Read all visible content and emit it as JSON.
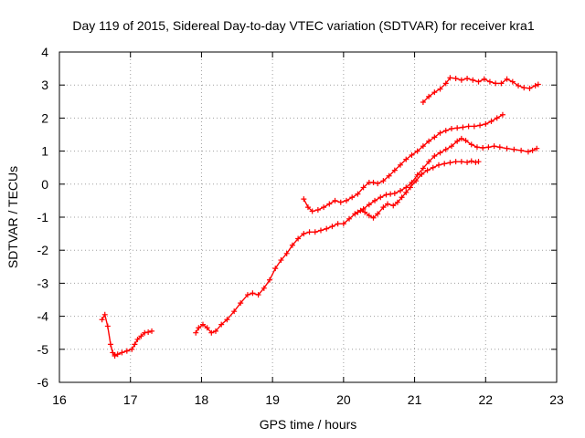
{
  "chart_data": {
    "type": "scatter",
    "title": "Day 119 of 2015, Sidereal Day-to-day VTEC variation (SDTVAR) for receiver kra1",
    "xlabel": "GPS time / hours",
    "ylabel": "SDTVAR / TECUs",
    "xlim": [
      16,
      23
    ],
    "ylim": [
      -6,
      4
    ],
    "xticks": [
      16,
      17,
      18,
      19,
      20,
      21,
      22,
      23
    ],
    "yticks": [
      -6,
      -5,
      -4,
      -3,
      -2,
      -1,
      0,
      1,
      2,
      3,
      4
    ],
    "grid": true,
    "marker": "+",
    "color": "#ff0000",
    "series": [
      {
        "points": [
          [
            16.6,
            -4.1
          ],
          [
            16.64,
            -3.95
          ],
          [
            16.68,
            -4.3
          ],
          [
            16.72,
            -4.85
          ],
          [
            16.75,
            -5.1
          ],
          [
            16.78,
            -5.2
          ],
          [
            16.82,
            -5.15
          ],
          [
            16.88,
            -5.1
          ],
          [
            16.95,
            -5.05
          ],
          [
            17.02,
            -5.0
          ],
          [
            17.06,
            -4.85
          ],
          [
            17.1,
            -4.7
          ],
          [
            17.15,
            -4.6
          ],
          [
            17.2,
            -4.5
          ],
          [
            17.25,
            -4.48
          ],
          [
            17.3,
            -4.45
          ]
        ]
      },
      {
        "points": [
          [
            17.92,
            -4.5
          ],
          [
            17.96,
            -4.35
          ],
          [
            18.02,
            -4.25
          ],
          [
            18.08,
            -4.35
          ],
          [
            18.14,
            -4.5
          ],
          [
            18.2,
            -4.45
          ],
          [
            18.28,
            -4.25
          ],
          [
            18.36,
            -4.1
          ],
          [
            18.46,
            -3.85
          ],
          [
            18.55,
            -3.6
          ],
          [
            18.65,
            -3.35
          ],
          [
            18.72,
            -3.3
          ],
          [
            18.8,
            -3.35
          ],
          [
            18.88,
            -3.15
          ],
          [
            18.96,
            -2.9
          ],
          [
            19.04,
            -2.55
          ],
          [
            19.12,
            -2.3
          ],
          [
            19.2,
            -2.1
          ],
          [
            19.28,
            -1.85
          ],
          [
            19.36,
            -1.65
          ],
          [
            19.44,
            -1.5
          ],
          [
            19.52,
            -1.45
          ],
          [
            19.6,
            -1.45
          ],
          [
            19.68,
            -1.4
          ],
          [
            19.76,
            -1.35
          ],
          [
            19.84,
            -1.28
          ],
          [
            19.92,
            -1.2
          ],
          [
            20.0,
            -1.2
          ],
          [
            20.08,
            -1.05
          ],
          [
            20.16,
            -0.9
          ],
          [
            20.24,
            -0.8
          ],
          [
            20.3,
            -0.85
          ],
          [
            20.36,
            -0.95
          ],
          [
            20.42,
            -1.02
          ],
          [
            20.48,
            -0.9
          ],
          [
            20.56,
            -0.7
          ],
          [
            20.62,
            -0.6
          ],
          [
            20.7,
            -0.65
          ],
          [
            20.76,
            -0.55
          ],
          [
            20.82,
            -0.4
          ],
          [
            20.88,
            -0.25
          ],
          [
            20.94,
            -0.1
          ],
          [
            21.02,
            0.1
          ],
          [
            21.1,
            0.3
          ],
          [
            21.18,
            0.42
          ],
          [
            21.26,
            0.5
          ],
          [
            21.34,
            0.58
          ],
          [
            21.42,
            0.62
          ],
          [
            21.5,
            0.65
          ],
          [
            21.58,
            0.68
          ],
          [
            21.66,
            0.68
          ],
          [
            21.74,
            0.66
          ],
          [
            21.8,
            0.7
          ],
          [
            21.86,
            0.66
          ],
          [
            21.9,
            0.68
          ]
        ]
      },
      {
        "points": [
          [
            19.44,
            -0.45
          ],
          [
            19.5,
            -0.7
          ],
          [
            19.56,
            -0.82
          ],
          [
            19.64,
            -0.78
          ],
          [
            19.72,
            -0.7
          ],
          [
            19.8,
            -0.6
          ],
          [
            19.88,
            -0.5
          ],
          [
            19.96,
            -0.55
          ],
          [
            20.04,
            -0.5
          ],
          [
            20.12,
            -0.4
          ],
          [
            20.2,
            -0.3
          ],
          [
            20.28,
            -0.1
          ],
          [
            20.36,
            0.05
          ],
          [
            20.42,
            0.05
          ],
          [
            20.48,
            0.02
          ],
          [
            20.56,
            0.1
          ],
          [
            20.64,
            0.25
          ],
          [
            20.72,
            0.42
          ],
          [
            20.8,
            0.58
          ],
          [
            20.88,
            0.75
          ],
          [
            20.96,
            0.88
          ],
          [
            21.04,
            1.0
          ],
          [
            21.12,
            1.15
          ],
          [
            21.2,
            1.3
          ],
          [
            21.28,
            1.42
          ],
          [
            21.36,
            1.55
          ],
          [
            21.44,
            1.62
          ],
          [
            21.52,
            1.68
          ],
          [
            21.6,
            1.7
          ],
          [
            21.68,
            1.72
          ],
          [
            21.76,
            1.75
          ],
          [
            21.84,
            1.75
          ],
          [
            21.92,
            1.78
          ],
          [
            22.0,
            1.82
          ],
          [
            22.08,
            1.9
          ],
          [
            22.16,
            2.0
          ],
          [
            22.24,
            2.1
          ]
        ]
      },
      {
        "points": [
          [
            20.2,
            -0.85
          ],
          [
            20.28,
            -0.75
          ],
          [
            20.36,
            -0.62
          ],
          [
            20.44,
            -0.5
          ],
          [
            20.52,
            -0.4
          ],
          [
            20.6,
            -0.32
          ],
          [
            20.66,
            -0.3
          ],
          [
            20.72,
            -0.28
          ],
          [
            20.8,
            -0.2
          ],
          [
            20.88,
            -0.1
          ],
          [
            20.96,
            0.05
          ],
          [
            21.04,
            0.28
          ],
          [
            21.12,
            0.48
          ],
          [
            21.2,
            0.68
          ],
          [
            21.28,
            0.85
          ],
          [
            21.36,
            0.95
          ],
          [
            21.44,
            1.05
          ],
          [
            21.52,
            1.15
          ],
          [
            21.6,
            1.3
          ],
          [
            21.66,
            1.38
          ],
          [
            21.72,
            1.32
          ],
          [
            21.8,
            1.2
          ],
          [
            21.88,
            1.12
          ],
          [
            21.96,
            1.1
          ],
          [
            22.04,
            1.12
          ],
          [
            22.12,
            1.15
          ],
          [
            22.2,
            1.12
          ],
          [
            22.3,
            1.08
          ],
          [
            22.4,
            1.05
          ],
          [
            22.5,
            1.02
          ],
          [
            22.6,
            0.98
          ],
          [
            22.66,
            1.02
          ],
          [
            22.72,
            1.08
          ]
        ]
      },
      {
        "points": [
          [
            21.12,
            2.48
          ],
          [
            21.2,
            2.65
          ],
          [
            21.28,
            2.78
          ],
          [
            21.36,
            2.88
          ],
          [
            21.44,
            3.05
          ],
          [
            21.5,
            3.22
          ],
          [
            21.58,
            3.2
          ],
          [
            21.66,
            3.15
          ],
          [
            21.74,
            3.2
          ],
          [
            21.82,
            3.15
          ],
          [
            21.9,
            3.1
          ],
          [
            21.98,
            3.18
          ],
          [
            22.06,
            3.1
          ],
          [
            22.14,
            3.05
          ],
          [
            22.22,
            3.05
          ],
          [
            22.3,
            3.18
          ],
          [
            22.38,
            3.1
          ],
          [
            22.46,
            2.98
          ],
          [
            22.54,
            2.92
          ],
          [
            22.62,
            2.9
          ],
          [
            22.7,
            2.98
          ],
          [
            22.74,
            3.02
          ]
        ]
      }
    ]
  }
}
